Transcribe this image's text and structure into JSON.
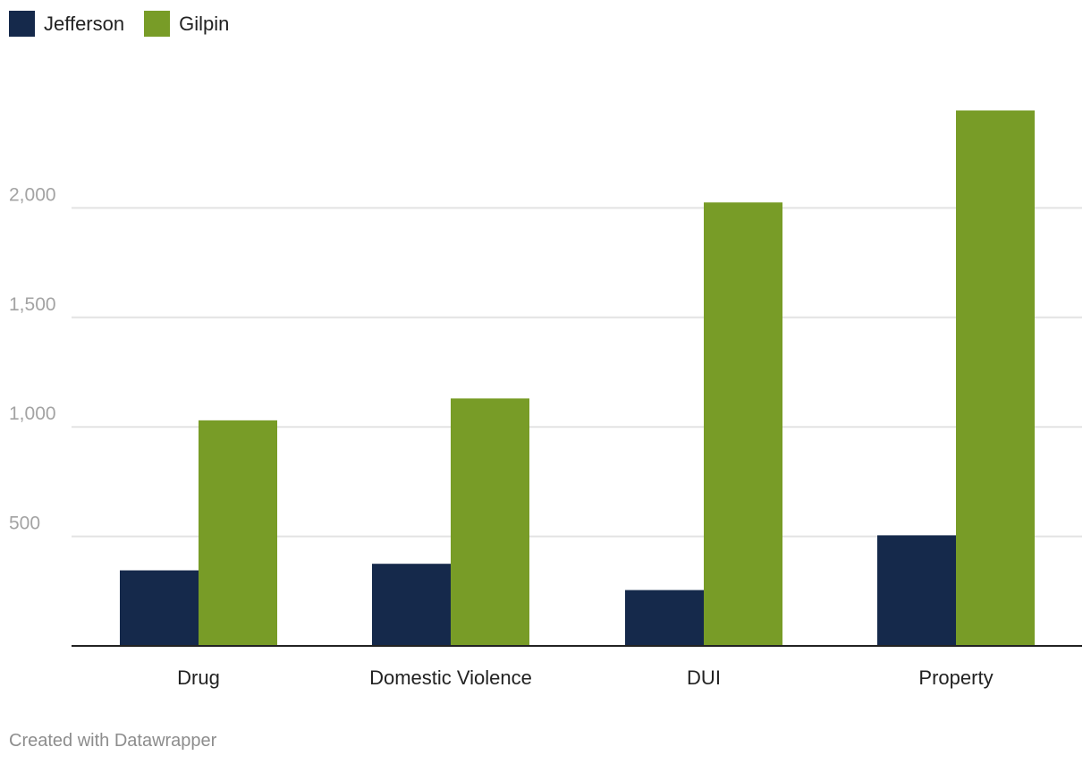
{
  "chart_data": {
    "type": "bar",
    "categories": [
      "Drug",
      "Domestic Violence",
      "DUI",
      "Property"
    ],
    "series": [
      {
        "name": "Jefferson",
        "color": "#15294b",
        "values": [
          345,
          375,
          255,
          505
        ]
      },
      {
        "name": "Gilpin",
        "color": "#789c27",
        "values": [
          1030,
          1130,
          2025,
          2445
        ]
      }
    ],
    "y_ticks": [
      {
        "value": 500,
        "label": "500"
      },
      {
        "value": 1000,
        "label": "1,000"
      },
      {
        "value": 1500,
        "label": "1,500"
      },
      {
        "value": 2000,
        "label": "2,000"
      }
    ],
    "ylim": [
      0,
      2450
    ],
    "grid": true,
    "legend_position": "top-left"
  },
  "footer": {
    "credit": "Created with Datawrapper"
  }
}
